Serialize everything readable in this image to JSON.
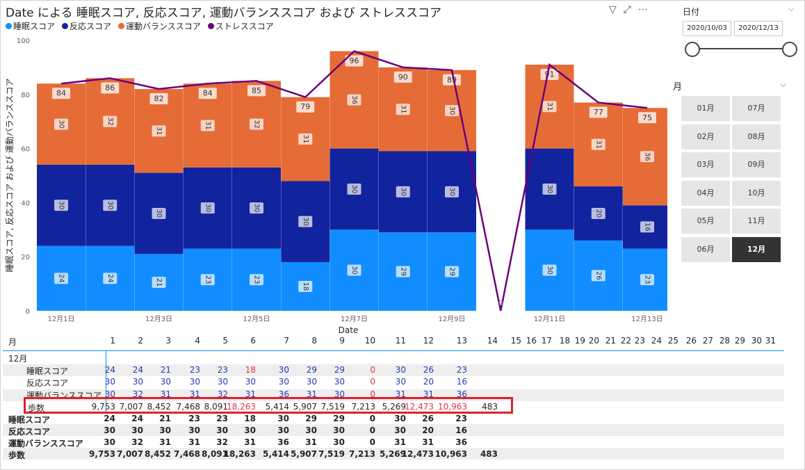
{
  "chart": {
    "title": "Date による 睡眠スコア, 反応スコア, 運動バランススコア および ストレススコア",
    "legend": [
      {
        "label": "睡眠スコア",
        "color": "#118dff"
      },
      {
        "label": "反応スコア",
        "color": "#12239e"
      },
      {
        "label": "運動バランススコア",
        "color": "#e66c37"
      },
      {
        "label": "ストレススコア",
        "color": "#6b007b"
      }
    ],
    "ylabel": "睡眠スコア, 反応スコア および 運動バランススコア",
    "xlabel": "Date",
    "yticks": [
      "0",
      "20",
      "40",
      "60",
      "80",
      "100"
    ]
  },
  "chart_data": {
    "type": "bar",
    "stacked": true,
    "ylim": [
      0,
      100
    ],
    "xlabel": "Date",
    "categories": [
      "12月1日",
      "12月2日",
      "12月3日",
      "12月4日",
      "12月5日",
      "12月6日",
      "12月7日",
      "12月8日",
      "12月9日",
      "12月10日",
      "12月11日",
      "12月12日",
      "12月13日"
    ],
    "tick_labels": [
      "12月1日",
      "",
      "12月3日",
      "",
      "12月5日",
      "",
      "12月7日",
      "",
      "12月9日",
      "",
      "12月11日",
      "",
      "12月13日"
    ],
    "series": [
      {
        "name": "睡眠スコア",
        "color": "#118dff",
        "values": [
          24,
          24,
          21,
          23,
          23,
          18,
          30,
          29,
          29,
          0,
          30,
          26,
          23
        ]
      },
      {
        "name": "反応スコア",
        "color": "#12239e",
        "values": [
          30,
          30,
          30,
          30,
          30,
          30,
          30,
          30,
          30,
          0,
          30,
          20,
          16
        ]
      },
      {
        "name": "運動バランススコア",
        "color": "#e66c37",
        "values": [
          30,
          32,
          31,
          31,
          32,
          31,
          36,
          31,
          30,
          0,
          31,
          31,
          36
        ]
      }
    ],
    "line": {
      "name": "ストレススコア",
      "color": "#6b007b",
      "values": [
        84,
        86,
        82,
        84,
        85,
        79,
        96,
        90,
        89,
        0,
        91,
        77,
        75
      ]
    }
  },
  "slicer_date": {
    "title": "日付",
    "start": "2020/10/03",
    "end": "2020/12/13"
  },
  "slicer_month": {
    "title": "月",
    "months": [
      "01月",
      "07月",
      "02月",
      "08月",
      "03月",
      "09月",
      "04月",
      "10月",
      "05月",
      "11月",
      "06月",
      "12月"
    ],
    "selected": "12月"
  },
  "table": {
    "row_header_label": "月",
    "columns": [
      "1",
      "2",
      "3",
      "4",
      "5",
      "6",
      "7",
      "8",
      "9",
      "10",
      "11",
      "12",
      "13",
      "14",
      "15",
      "16",
      "17",
      "18",
      "19",
      "20",
      "21",
      "22",
      "23",
      "24",
      "25",
      "26",
      "27",
      "28",
      "29",
      "30",
      "31"
    ],
    "group_label": "12月",
    "group_rows": [
      {
        "label": "睡眠スコア",
        "values": [
          "24",
          "24",
          "21",
          "23",
          "23",
          "18",
          "30",
          "29",
          "29",
          "0",
          "30",
          "26",
          "23"
        ]
      },
      {
        "label": "反応スコア",
        "values": [
          "30",
          "30",
          "30",
          "30",
          "30",
          "30",
          "30",
          "30",
          "30",
          "0",
          "30",
          "20",
          "16"
        ]
      },
      {
        "label": "運動バランススコア",
        "values": [
          "30",
          "32",
          "31",
          "31",
          "32",
          "31",
          "36",
          "31",
          "30",
          "0",
          "31",
          "31",
          "36"
        ]
      },
      {
        "label": "歩数",
        "values": [
          "9,753",
          "7,007",
          "8,452",
          "7,468",
          "8,091",
          "18,263",
          "5,414",
          "5,907",
          "7,519",
          "7,213",
          "5,269",
          "12,473",
          "10,963",
          "483"
        ]
      }
    ],
    "total_rows": [
      {
        "label": "睡眠スコア",
        "values": [
          "24",
          "24",
          "21",
          "23",
          "23",
          "18",
          "30",
          "29",
          "29",
          "0",
          "30",
          "26",
          "23"
        ]
      },
      {
        "label": "反応スコア",
        "values": [
          "30",
          "30",
          "30",
          "30",
          "30",
          "30",
          "30",
          "30",
          "30",
          "0",
          "30",
          "20",
          "16"
        ]
      },
      {
        "label": "運動バランススコア",
        "values": [
          "30",
          "32",
          "31",
          "31",
          "32",
          "31",
          "36",
          "31",
          "30",
          "0",
          "31",
          "31",
          "36"
        ]
      },
      {
        "label": "歩数",
        "values": [
          "9,753",
          "7,007",
          "8,452",
          "7,468",
          "8,091",
          "18,263",
          "5,414",
          "5,907",
          "7,519",
          "7,213",
          "5,269",
          "12,473",
          "10,963",
          "483"
        ]
      }
    ]
  }
}
